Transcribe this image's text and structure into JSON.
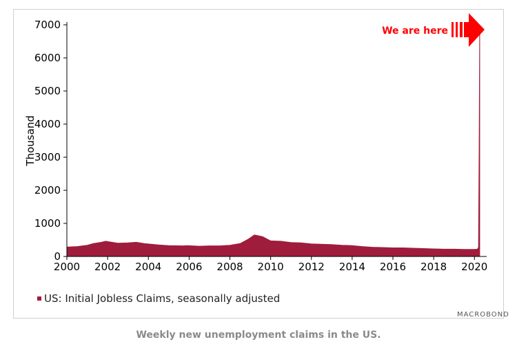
{
  "colors": {
    "series": "#a01c3c",
    "annotation": "#ff0000",
    "axis": "#000000"
  },
  "brand": "MACROBOND",
  "caption": "Weekly new unemployment claims in the US.",
  "chart_data": {
    "type": "area",
    "ylabel": "Thousand",
    "xlim": [
      2000,
      2020.6
    ],
    "ylim": [
      0,
      7000
    ],
    "x_ticks": [
      "2000",
      "2002",
      "2004",
      "2006",
      "2008",
      "2010",
      "2012",
      "2014",
      "2016",
      "2018",
      "2020"
    ],
    "y_ticks": [
      "0",
      "1000",
      "2000",
      "3000",
      "4000",
      "5000",
      "6000",
      "7000"
    ],
    "grid": false,
    "legend": "bottom-left",
    "annotation": "We are here",
    "series": [
      {
        "name": "US: Initial Jobless Claims, seasonally adjusted",
        "x": [
          2000.0,
          2000.5,
          2001.0,
          2001.3,
          2001.7,
          2001.9,
          2002.5,
          2003.0,
          2003.4,
          2003.8,
          2004.5,
          2005.0,
          2005.7,
          2005.9,
          2006.5,
          2007.0,
          2007.5,
          2008.0,
          2008.5,
          2008.9,
          2009.2,
          2009.6,
          2010.0,
          2010.5,
          2011.0,
          2011.5,
          2012.0,
          2012.5,
          2013.0,
          2013.5,
          2014.0,
          2014.5,
          2015.0,
          2015.5,
          2016.0,
          2016.5,
          2017.0,
          2017.5,
          2018.0,
          2018.5,
          2019.0,
          2019.5,
          2020.0,
          2020.15,
          2020.2,
          2020.23,
          2020.26
        ],
        "values": [
          285,
          300,
          340,
          390,
          430,
          460,
          400,
          410,
          430,
          390,
          350,
          330,
          320,
          330,
          310,
          320,
          320,
          340,
          390,
          520,
          650,
          600,
          470,
          460,
          420,
          410,
          380,
          370,
          360,
          340,
          330,
          300,
          280,
          270,
          260,
          260,
          250,
          240,
          230,
          220,
          220,
          215,
          215,
          220,
          280,
          3300,
          6870
        ]
      }
    ]
  }
}
